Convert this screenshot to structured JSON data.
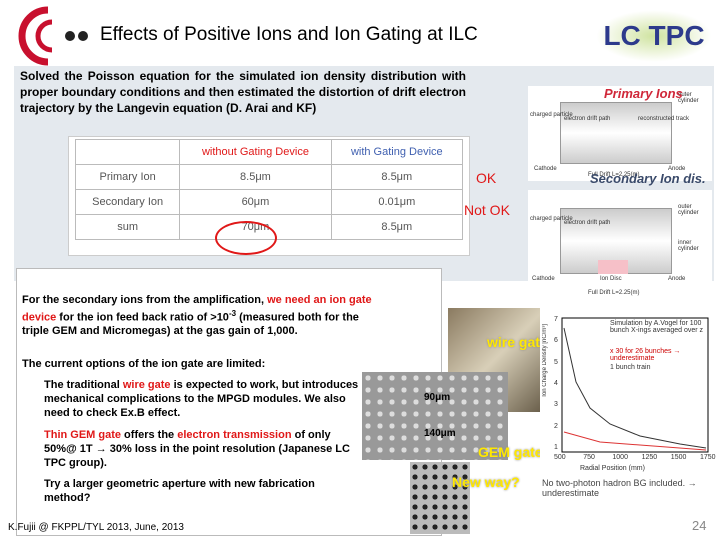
{
  "header": {
    "title": "Effects of Positive Ions and Ion Gating at ILC",
    "logo": "LC TPC"
  },
  "intro": "Solved the Poisson equation for the simulated ion density distribution with proper boundary conditions and then estimated the distortion of drift electron trajectory by the Langevin equation (D. Arai and KF)",
  "table": {
    "header": [
      "without Gating Device",
      "with Gating Device"
    ],
    "rows": [
      [
        "Primary Ion",
        "8.5μm",
        "8.5μm"
      ],
      [
        "Secondary Ion",
        "60μm",
        "0.01μm"
      ],
      [
        "sum",
        "70μm",
        "8.5μm"
      ]
    ]
  },
  "verdicts": {
    "ok": "OK",
    "not_ok": "Not OK"
  },
  "diagrams": {
    "primary": {
      "title": "Primary Ions",
      "labels": [
        "outer cylinder",
        "charged particle",
        "electron drift path",
        "reconstructed track",
        "Cathode",
        "Anode",
        "Full Drift L=2.25(m)"
      ]
    },
    "secondary": {
      "title": "Secondary Ion dis.",
      "labels": [
        "charged particle",
        "electron drift path",
        "outer cylinder",
        "inner cylinder",
        "Cathode",
        "Ion Disc",
        "Anode",
        "Full Drift L=2.25(m)"
      ]
    }
  },
  "body": {
    "para1": [
      {
        "text": "For the secondary ions from the amplification, "
      },
      {
        "text": "we need an ion gate device",
        "style": "red"
      },
      {
        "text": " for the ion feed back ratio of >10"
      },
      {
        "text": "-3",
        "style": "sup"
      },
      {
        "text": " (measured both for the triple GEM and Micromegas)  at the gas gain of 1,000."
      }
    ],
    "para2": "The current options of the ion gate are limited:",
    "bullets": [
      [
        {
          "text": "The traditional "
        },
        {
          "text": "wire gate",
          "style": "red"
        },
        {
          "text": "  is expected to work, but introduces mechanical  complications to the MPGD modules. We also need to check Ex.B effect."
        }
      ],
      [
        {
          "text": "Thin GEM gate",
          "style": "red"
        },
        {
          "text": " offers the "
        },
        {
          "text": "electron transmission",
          "style": "red"
        },
        {
          "text": " of only 50%@ 1T  → 30% loss in the  point resolution (Japanese LC TPC group)."
        }
      ],
      [
        {
          "text": "Try a larger geometric aperture with new fabrication method?"
        }
      ]
    ]
  },
  "image_labels": {
    "wire": "wire gate",
    "gem": "GEM gate",
    "new": "New way?",
    "pitch": "90μm",
    "hole": "140μm"
  },
  "plot": {
    "note": "Simulation by A.Vogel for 100 bunch X-ings averaged over z",
    "legend": [
      "x 30 for 26 bunches → underestimate",
      "1 bunch train"
    ],
    "footnote": "No two-photon hadron BG included. → underestimate",
    "xlabel": "Radial Position (mm)",
    "ylabel": "Ion Charge Density [nC/m³]",
    "xticks": [
      "500",
      "750",
      "1000",
      "1250",
      "1500",
      "1750"
    ],
    "yticks": [
      "7",
      "6",
      "5",
      "4",
      "3",
      "2",
      "1"
    ]
  },
  "footer": {
    "credit": "K.Fujii @ FKPPL/TYL 2013, June, 2013",
    "page": "24"
  }
}
